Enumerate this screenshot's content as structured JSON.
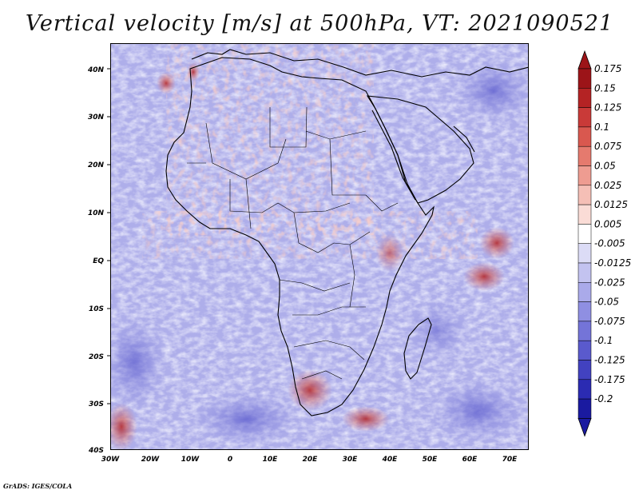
{
  "title": "Vertical velocity [m/s] at 500hPa, VT: 2021090521",
  "credit": "GrADS: IGES/COLA",
  "map": {
    "region": "Africa",
    "lat_labels": [
      "40N",
      "30N",
      "20N",
      "10N",
      "EQ",
      "10S",
      "20S",
      "30S",
      "40S"
    ],
    "lon_labels": [
      "30W",
      "20W",
      "10W",
      "0",
      "10E",
      "20E",
      "30E",
      "40E",
      "50E",
      "60E",
      "70E"
    ]
  },
  "colorbar": {
    "labels": [
      "0.175",
      "0.15",
      "0.125",
      "0.1",
      "0.075",
      "0.05",
      "0.025",
      "0.0125",
      "0.005",
      "-0.005",
      "-0.0125",
      "-0.025",
      "-0.05",
      "-0.075",
      "-0.1",
      "-0.125",
      "-0.175",
      "-0.2"
    ],
    "colors": [
      "#9c1418",
      "#b42324",
      "#c93a38",
      "#d9584f",
      "#e57a6e",
      "#ee9c91",
      "#f5bfb6",
      "#fadcd6",
      "#ffffff",
      "#dcdcf6",
      "#c3c3f0",
      "#aaaaea",
      "#8f8fe2",
      "#7474d8",
      "#5a5acd",
      "#4242c0",
      "#2b2bb2",
      "#1a1aa0"
    ]
  },
  "chart_data": {
    "type": "heatmap",
    "title": "Vertical velocity [m/s] at 500hPa, VT: 2021090521",
    "variable": "Vertical velocity",
    "units": "m/s",
    "level": "500hPa",
    "valid_time": "2021090521",
    "x_range": [
      -30,
      75
    ],
    "y_range": [
      -40,
      45
    ],
    "legend": [
      "0.175",
      "0.15",
      "0.125",
      "0.1",
      "0.075",
      "0.05",
      "0.025",
      "0.0125",
      "0.005",
      "-0.005",
      "-0.0125",
      "-0.025",
      "-0.05",
      "-0.075",
      "-0.1",
      "-0.125",
      "-0.175",
      "-0.2"
    ]
  }
}
